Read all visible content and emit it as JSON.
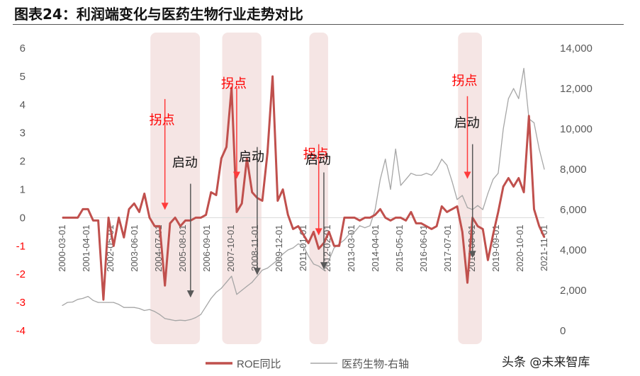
{
  "title": "图表24：利润端变化与医药生物行业走势对比",
  "watermark": "头条 @未来智库",
  "colors": {
    "roe": "#c0504d",
    "index": "#a6a6a6",
    "highlight": "#f2dcdb",
    "arrow_red": "#ff3b3b",
    "arrow_dark": "#595959"
  },
  "chart_data": {
    "type": "line",
    "title": "",
    "x_tick_labels": [
      "2000-03-01",
      "2001-04-01",
      "2002-05-01",
      "2003-06-01",
      "2004-07-01",
      "2005-08-01",
      "2006-09-01",
      "2007-10-01",
      "2008-11-01",
      "2009-12-01",
      "2011-01-01",
      "2012-02-01",
      "2013-03-01",
      "2014-04-01",
      "2015-05-01",
      "2016-06-01",
      "2017-07-01",
      "2018-08-01",
      "2019-09-01",
      "2020-10-01",
      "2021-11-01"
    ],
    "y_left": {
      "ticks": [
        "6",
        "5",
        "4",
        "3",
        "2",
        "1",
        "0",
        "-1",
        "-2",
        "-3",
        "-4"
      ],
      "range": [
        -4,
        6
      ]
    },
    "y_right": {
      "ticks": [
        "14,000",
        "12,000",
        "10,000",
        "8,000",
        "6,000",
        "4,000",
        "2,000",
        "0"
      ],
      "range": [
        0,
        14000
      ]
    },
    "legend": {
      "position": "bottom",
      "entries": [
        "ROE同比",
        "医药生物-右轴"
      ]
    },
    "series": [
      {
        "name": "ROE同比",
        "axis": "left",
        "color": "#c0504d",
        "values": [
          0,
          0,
          0,
          0,
          0.3,
          0.3,
          -0.1,
          -0.1,
          -2.9,
          0,
          -1.0,
          0,
          -0.7,
          0.3,
          0.5,
          0.2,
          0.85,
          0,
          -0.3,
          -0.3,
          -2.4,
          -0.2,
          0,
          -0.3,
          -0.1,
          -0.1,
          0,
          0,
          0.1,
          0.9,
          0.8,
          2.1,
          2.5,
          4.6,
          0.2,
          0.5,
          2.1,
          0.9,
          0.7,
          0.6,
          2.3,
          5.0,
          0.6,
          1.0,
          0.1,
          -0.4,
          -0.3,
          -0.6,
          -0.9,
          -0.5,
          -1.1,
          -0.9,
          -0.5,
          -1.0,
          -1.0,
          0,
          0,
          0,
          -0.1,
          0,
          0,
          0.1,
          0.3,
          0,
          -0.1,
          0,
          0,
          -0.1,
          0.2,
          -0.2,
          -0.2,
          -0.3,
          -0.4,
          -0.3,
          0.4,
          0.2,
          0.3,
          0.4,
          -0.5,
          -2.3,
          0,
          -0.3,
          -0.4,
          -1.5,
          -0.6,
          0.2,
          1.1,
          1.4,
          1.1,
          1.4,
          0.9,
          3.6,
          0.3,
          -0.3,
          -0.7
        ]
      },
      {
        "name": "医药生物-右轴",
        "axis": "right",
        "color": "#a6a6a6",
        "values": [
          1250,
          1400,
          1420,
          1550,
          1600,
          1700,
          1500,
          1400,
          1400,
          1400,
          1400,
          1300,
          1150,
          1150,
          1150,
          1100,
          1000,
          1050,
          950,
          800,
          600,
          550,
          500,
          520,
          500,
          550,
          650,
          800,
          1200,
          1600,
          1900,
          2100,
          2400,
          2700,
          1800,
          2000,
          2200,
          2400,
          2700,
          3000,
          3100,
          3300,
          3500,
          3800,
          4000,
          4100,
          4300,
          4200,
          3700,
          3300,
          3200,
          3000,
          3500,
          4100,
          4300,
          4500,
          4800,
          4900,
          5200,
          5100,
          5200,
          6000,
          7500,
          8500,
          7000,
          9000,
          7200,
          7500,
          7800,
          7700,
          7700,
          7800,
          7700,
          8000,
          8500,
          8200,
          7400,
          6500,
          6700,
          6100,
          6000,
          6200,
          6000,
          6800,
          7500,
          7800,
          10000,
          11500,
          12000,
          11500,
          13000,
          10500,
          10300,
          9000,
          8000
        ]
      }
    ]
  },
  "annotations": [
    {
      "label": "拐点",
      "kind": "turn",
      "color": "red",
      "x_index": 20,
      "arrow_from": 4.2,
      "arrow_to": 0.3,
      "text_y": 3.3
    },
    {
      "label": "启动",
      "kind": "start",
      "color": "dark",
      "x_index": 25,
      "arrow_from": 1.2,
      "arrow_to": -2.8,
      "text_y": 1.8
    },
    {
      "label": "拐点",
      "kind": "turn",
      "color": "red",
      "x_index": 34,
      "arrow_from": 4.6,
      "arrow_to": 1.4,
      "text_y": 4.6
    },
    {
      "label": "启动",
      "kind": "start",
      "color": "dark",
      "x_index": 38,
      "arrow_from": 2.5,
      "arrow_to": -2.0,
      "text_y": 2.0
    },
    {
      "label": "拐点",
      "kind": "turn",
      "color": "red",
      "x_index": 50,
      "arrow_from": 2.6,
      "arrow_to": -0.6,
      "text_y": 2.1
    },
    {
      "label": "启动",
      "kind": "start",
      "color": "dark",
      "x_index": 51,
      "arrow_from": 1.6,
      "arrow_to": -1.8,
      "text_y": 1.9
    },
    {
      "label": "拐点",
      "kind": "turn",
      "color": "red",
      "x_index": 79,
      "arrow_from": 4.3,
      "arrow_to": 1.4,
      "text_y": 4.7
    },
    {
      "label": "启动",
      "kind": "start",
      "color": "dark",
      "x_index": 80,
      "arrow_from": 2.6,
      "arrow_to": -1.4,
      "text_y": 3.2
    }
  ],
  "highlight_bands": [
    [
      18,
      26
    ],
    [
      32,
      38
    ],
    [
      49,
      51
    ],
    [
      78,
      81
    ]
  ]
}
